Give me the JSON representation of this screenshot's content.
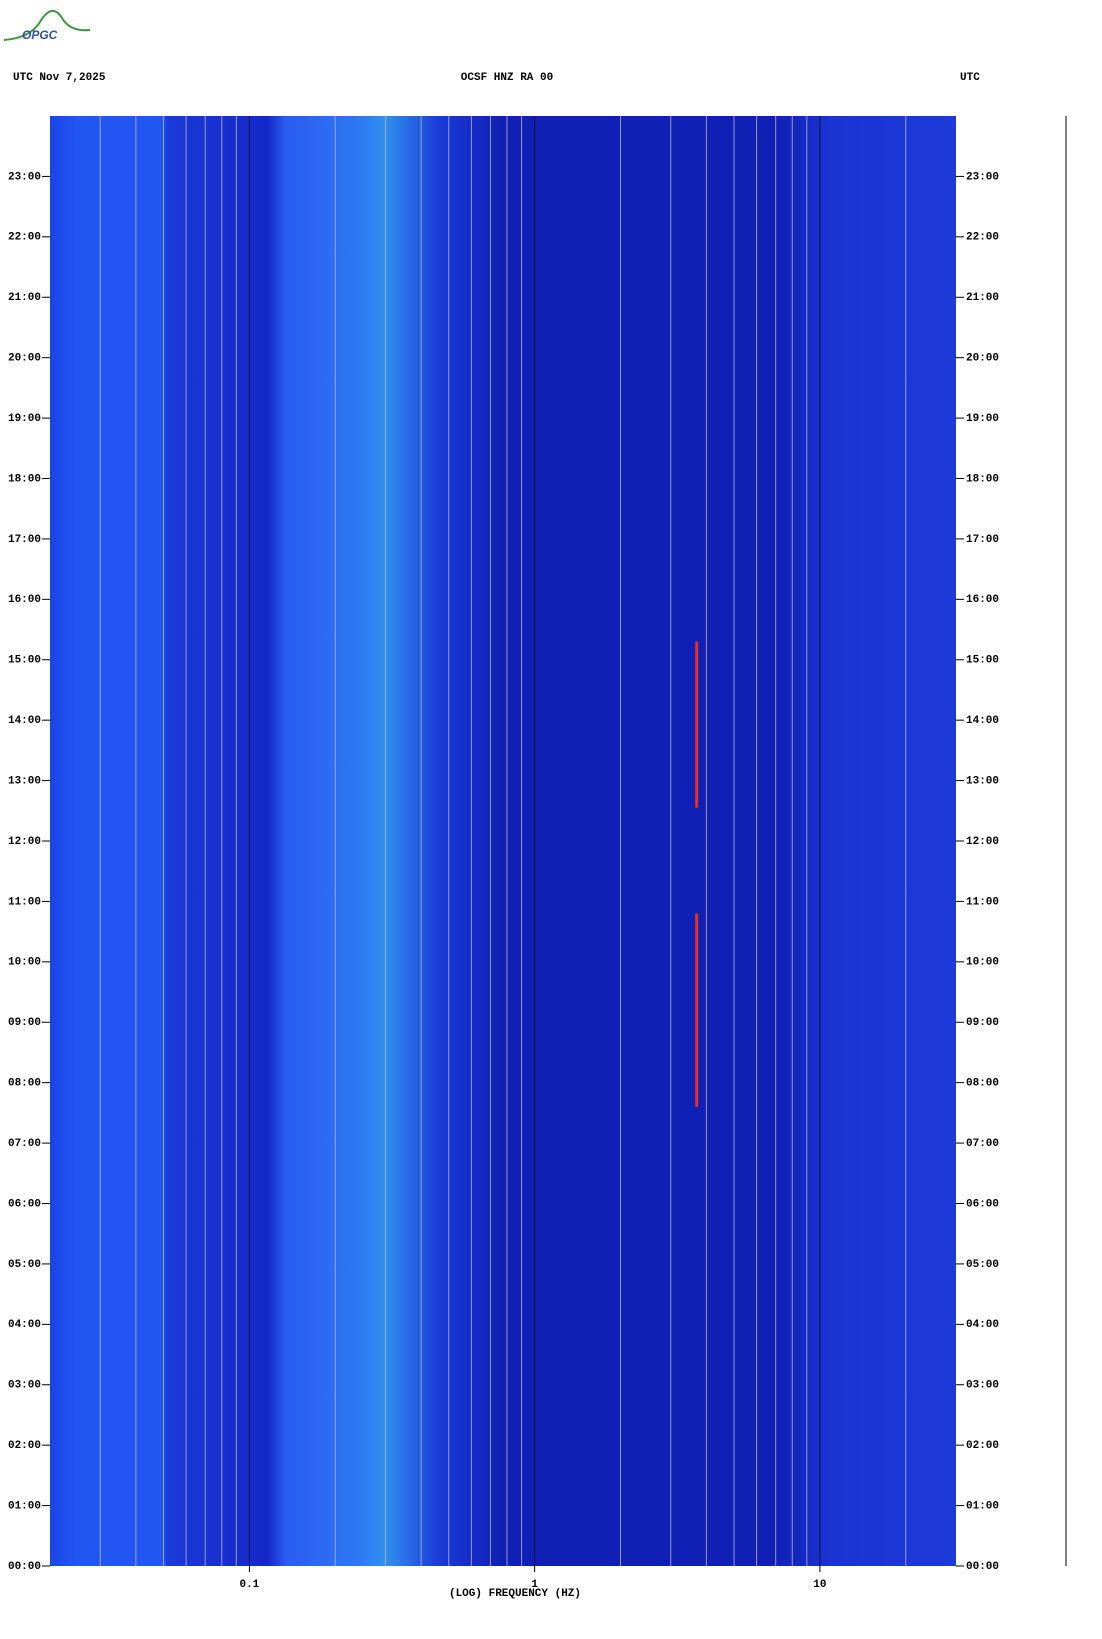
{
  "logo": "OPGC",
  "chart_data": {
    "type": "spectrogram",
    "header_left": "UTC  Nov 7,2025",
    "title": "OCSF HNZ RA 00",
    "header_right": "UTC",
    "xlabel": "(LOG) FREQUENCY (HZ)",
    "xscale": "log",
    "xlim": [
      0.02,
      30
    ],
    "xticks": [
      0.1,
      1,
      10
    ],
    "xminorticks": [
      0.03,
      0.04,
      0.05,
      0.06,
      0.07,
      0.08,
      0.09,
      0.2,
      0.3,
      0.4,
      0.5,
      0.6,
      0.7,
      0.8,
      0.9,
      2,
      3,
      4,
      5,
      6,
      7,
      8,
      9,
      20
    ],
    "ylim": [
      0,
      24
    ],
    "yticks": [
      {
        "value": 0,
        "label": "00:00"
      },
      {
        "value": 1,
        "label": "01:00"
      },
      {
        "value": 2,
        "label": "02:00"
      },
      {
        "value": 3,
        "label": "03:00"
      },
      {
        "value": 4,
        "label": "04:00"
      },
      {
        "value": 5,
        "label": "05:00"
      },
      {
        "value": 6,
        "label": "06:00"
      },
      {
        "value": 7,
        "label": "07:00"
      },
      {
        "value": 8,
        "label": "08:00"
      },
      {
        "value": 9,
        "label": "09:00"
      },
      {
        "value": 10,
        "label": "10:00"
      },
      {
        "value": 11,
        "label": "11:00"
      },
      {
        "value": 12,
        "label": "12:00"
      },
      {
        "value": 13,
        "label": "13:00"
      },
      {
        "value": 14,
        "label": "14:00"
      },
      {
        "value": 15,
        "label": "15:00"
      },
      {
        "value": 16,
        "label": "16:00"
      },
      {
        "value": 17,
        "label": "17:00"
      },
      {
        "value": 18,
        "label": "18:00"
      },
      {
        "value": 19,
        "label": "19:00"
      },
      {
        "value": 20,
        "label": "20:00"
      },
      {
        "value": 21,
        "label": "21:00"
      },
      {
        "value": 22,
        "label": "22:00"
      },
      {
        "value": 23,
        "label": "23:00"
      }
    ],
    "events": [
      {
        "freq": 3.7,
        "start": 7.6,
        "end": 10.8
      },
      {
        "freq": 3.7,
        "start": 12.55,
        "end": 15.3
      }
    ],
    "event_color": "#e83020"
  }
}
